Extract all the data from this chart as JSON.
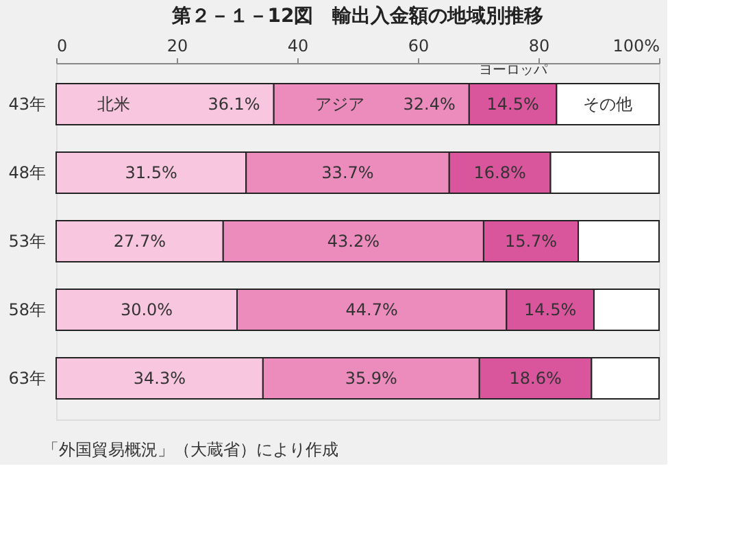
{
  "chart_data": {
    "type": "bar",
    "orientation": "horizontal",
    "stacked": true,
    "title": "第２－１－12図　輸出入金額の地域別推移",
    "categories": [
      "43年",
      "48年",
      "53年",
      "58年",
      "63年"
    ],
    "series": [
      {
        "name": "北米",
        "color": "#f8c6de",
        "values": [
          36.1,
          31.5,
          27.7,
          30.0,
          34.3
        ],
        "value_labels": [
          "36.1%",
          "31.5%",
          "27.7%",
          "30.0%",
          "34.3%"
        ]
      },
      {
        "name": "アジア",
        "color": "#ec8cbc",
        "values": [
          32.4,
          33.7,
          43.2,
          44.7,
          35.9
        ],
        "value_labels": [
          "32.4%",
          "33.7%",
          "43.2%",
          "44.7%",
          "35.9%"
        ]
      },
      {
        "name": "ヨーロッパ",
        "color": "#d9559c",
        "values": [
          14.5,
          16.8,
          15.7,
          14.5,
          18.6
        ],
        "value_labels": [
          "14.5%",
          "16.8%",
          "15.7%",
          "14.5%",
          "18.6%"
        ]
      },
      {
        "name": "その他",
        "color": "#ffffff",
        "values": [
          17.0,
          18.0,
          13.4,
          10.8,
          11.2
        ]
      }
    ],
    "xlim": [
      0,
      100
    ],
    "xticks": [
      0,
      20,
      40,
      60,
      80,
      {
        "value": 100,
        "label": "100%"
      }
    ],
    "grid": false,
    "legend": false,
    "annotations": [
      "「外国貿易概況」（大蔵省）により作成"
    ]
  }
}
